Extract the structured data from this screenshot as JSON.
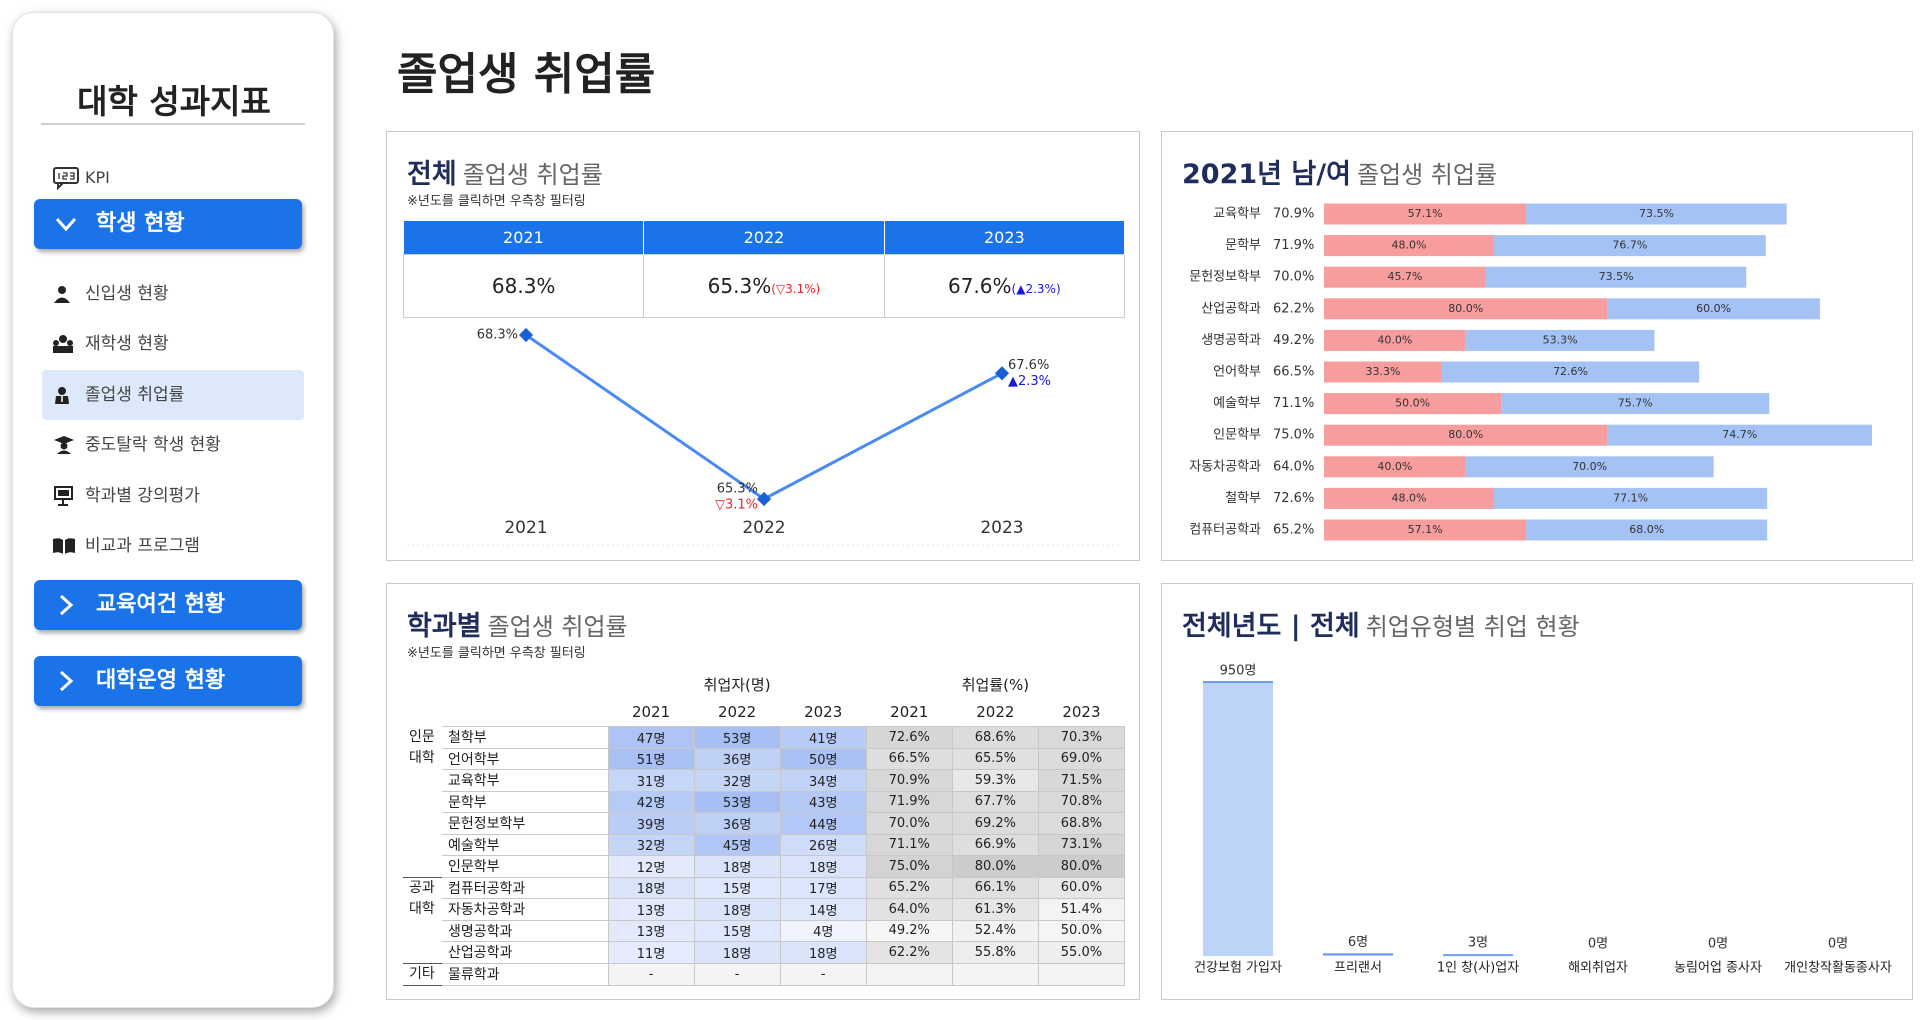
{
  "sidebar": {
    "title": "대학 성과지표",
    "kpi": "KPI",
    "sections": [
      {
        "label": "학생 현황",
        "items": [
          "신입생 현황",
          "재학생 현황",
          "졸업생 취업률",
          "중도탈락 학생 현황",
          "학과별 강의평가",
          "비교과 프로그램"
        ]
      },
      {
        "label": "교육여건 현황"
      },
      {
        "label": "대학운영 현황"
      }
    ]
  },
  "page_title": "졸업생 취업률",
  "overall_panel": {
    "title_bold": "전체",
    "title_rest": "졸업생 취업률",
    "note": "※년도를 클릭하면 우측창 필터링",
    "summary": {
      "years": [
        "2021",
        "2022",
        "2023"
      ],
      "rates": [
        "68.3%",
        "65.3%",
        "67.6%"
      ],
      "changes": [
        null,
        "▽3.1%",
        "▲2.3%"
      ]
    }
  },
  "chart_data": [
    {
      "type": "line",
      "categories": [
        "2021",
        "2022",
        "2023"
      ],
      "values": [
        68.3,
        65.3,
        67.6
      ],
      "value_labels": [
        "68.3%",
        "65.3%",
        "67.6%"
      ],
      "annotations": [
        null,
        "▽3.1%",
        "▲2.3%"
      ],
      "color": "#4a8af4"
    },
    {
      "type": "stacked_hbar",
      "title_bold": "2021년 남/여",
      "title_rest": "졸업생 취업률",
      "categories": [
        "교육학부",
        "문학부",
        "문헌정보학부",
        "산업공학과",
        "생명공학과",
        "언어학부",
        "예술학부",
        "인문학부",
        "자동차공학과",
        "철학부",
        "컴퓨터공학과"
      ],
      "category_labels": [
        "70.9%",
        "71.9%",
        "70.0%",
        "62.2%",
        "49.2%",
        "66.5%",
        "71.1%",
        "75.0%",
        "64.0%",
        "72.6%",
        "65.2%"
      ],
      "series": [
        {
          "color": "#f79d9d",
          "values": [
            57.1,
            48.0,
            45.7,
            80.0,
            40.0,
            33.3,
            50.0,
            80.0,
            40.0,
            48.0,
            57.1
          ],
          "value_labels": [
            "57.1%",
            "48.0%",
            "45.7%",
            "80.0%",
            "40.0%",
            "33.3%",
            "50.0%",
            "80.0%",
            "40.0%",
            "48.0%",
            "57.1%"
          ]
        },
        {
          "color": "#a4c2f4",
          "values": [
            73.5,
            76.7,
            73.5,
            60.0,
            53.3,
            72.6,
            75.7,
            74.7,
            70.0,
            77.1,
            68.0
          ],
          "value_labels": [
            "73.5%",
            "76.7%",
            "73.5%",
            "60.0%",
            "53.3%",
            "72.6%",
            "75.7%",
            "74.7%",
            "70.0%",
            "77.1%",
            "68.0%"
          ]
        }
      ]
    },
    {
      "type": "bar",
      "title_bold": "전체년도 | 전체",
      "title_rest": "취업유형별 취업 현황",
      "categories": [
        "건강보험 가입자",
        "프리랜서",
        "1인 창(사)업자",
        "해외취업자",
        "농림어업 종사자",
        "개인창작활동종사자"
      ],
      "values": [
        950,
        6,
        3,
        0,
        0,
        0
      ],
      "value_labels": [
        "950명",
        "6명",
        "3명",
        "0명",
        "0명",
        "0명"
      ],
      "color": "#bcd4f8"
    }
  ],
  "dept_panel": {
    "title_bold": "학과별",
    "title_rest": "졸업생 취업률",
    "note": "※년도를 클릭하면 우측창 필터링",
    "group_headers": [
      "취업자(명)",
      "취업률(%)"
    ],
    "years": [
      "2021",
      "2022",
      "2023"
    ],
    "colleges": [
      {
        "name": "인문대학",
        "rows": [
          {
            "dept": "철학부",
            "counts": [
              "47명",
              "53명",
              "41명"
            ],
            "rates": [
              "72.6%",
              "68.6%",
              "70.3%"
            ]
          },
          {
            "dept": "언어학부",
            "counts": [
              "51명",
              "36명",
              "50명"
            ],
            "rates": [
              "66.5%",
              "65.5%",
              "69.0%"
            ]
          },
          {
            "dept": "교육학부",
            "counts": [
              "31명",
              "32명",
              "34명"
            ],
            "rates": [
              "70.9%",
              "59.3%",
              "71.5%"
            ]
          },
          {
            "dept": "문학부",
            "counts": [
              "42명",
              "53명",
              "43명"
            ],
            "rates": [
              "71.9%",
              "67.7%",
              "70.8%"
            ]
          },
          {
            "dept": "문헌정보학부",
            "counts": [
              "39명",
              "36명",
              "44명"
            ],
            "rates": [
              "70.0%",
              "69.2%",
              "68.8%"
            ]
          },
          {
            "dept": "예술학부",
            "counts": [
              "32명",
              "45명",
              "26명"
            ],
            "rates": [
              "71.1%",
              "66.9%",
              "73.1%"
            ]
          },
          {
            "dept": "인문학부",
            "counts": [
              "12명",
              "18명",
              "18명"
            ],
            "rates": [
              "75.0%",
              "80.0%",
              "80.0%"
            ]
          }
        ]
      },
      {
        "name": "공과대학",
        "rows": [
          {
            "dept": "컴퓨터공학과",
            "counts": [
              "18명",
              "15명",
              "17명"
            ],
            "rates": [
              "65.2%",
              "66.1%",
              "60.0%"
            ]
          },
          {
            "dept": "자동차공학과",
            "counts": [
              "13명",
              "18명",
              "14명"
            ],
            "rates": [
              "64.0%",
              "61.3%",
              "51.4%"
            ]
          },
          {
            "dept": "생명공학과",
            "counts": [
              "13명",
              "15명",
              "4명"
            ],
            "rates": [
              "49.2%",
              "52.4%",
              "50.0%"
            ]
          },
          {
            "dept": "산업공학과",
            "counts": [
              "11명",
              "18명",
              "18명"
            ],
            "rates": [
              "62.2%",
              "55.8%",
              "55.0%"
            ]
          }
        ]
      },
      {
        "name": "기타",
        "rows": [
          {
            "dept": "물류학과",
            "counts": [
              "-",
              "-",
              "-"
            ],
            "rates": []
          }
        ]
      }
    ]
  }
}
